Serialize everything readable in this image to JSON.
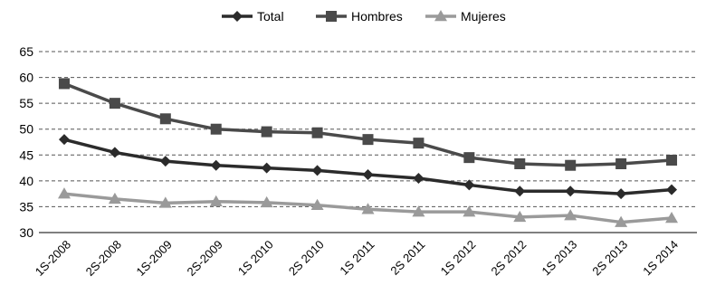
{
  "chart_data": {
    "type": "line",
    "title": "",
    "xlabel": "",
    "ylabel": "",
    "ylim": [
      30,
      65
    ],
    "yticks": [
      30,
      35,
      40,
      45,
      50,
      55,
      60,
      65
    ],
    "grid": "horizontal dashed",
    "legend_position": "top-center",
    "categories": [
      "1S-2008",
      "2S-2008",
      "1S-2009",
      "2S-2009",
      "1S 2010",
      "2S 2010",
      "1S 2011",
      "2S 2011",
      "1S 2012",
      "2S 2012",
      "1S 2013",
      "2S 2013",
      "1S 2014"
    ],
    "series": [
      {
        "name": "Total",
        "marker": "diamond",
        "color": "#2b2b2b",
        "values": [
          48.0,
          45.5,
          43.8,
          43.0,
          42.5,
          42.0,
          41.2,
          40.5,
          39.2,
          38.0,
          38.0,
          37.5,
          38.3
        ]
      },
      {
        "name": "Hombres",
        "marker": "square",
        "color": "#4a4a4a",
        "values": [
          58.8,
          55.0,
          52.0,
          50.0,
          49.5,
          49.3,
          48.0,
          47.3,
          44.5,
          43.3,
          43.0,
          43.3,
          44.0
        ]
      },
      {
        "name": "Mujeres",
        "marker": "triangle",
        "color": "#9a9a9a",
        "values": [
          37.5,
          36.5,
          35.7,
          36.0,
          35.8,
          35.3,
          34.5,
          34.0,
          34.0,
          33.0,
          33.3,
          32.0,
          32.8
        ]
      }
    ]
  }
}
